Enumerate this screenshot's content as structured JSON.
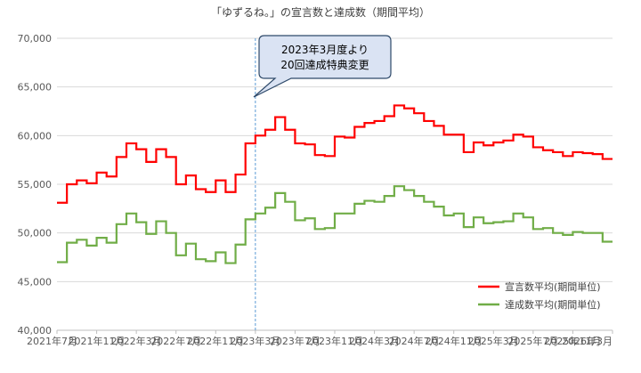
{
  "chart_data": {
    "type": "line",
    "title": "「ゆずるね。」の宣言数と達成数（期間平均）",
    "xlabel": "",
    "ylabel": "",
    "ylim": [
      40000,
      70000
    ],
    "yticks": [
      40000,
      45000,
      50000,
      55000,
      60000,
      65000,
      70000
    ],
    "ytick_labels": [
      "40,000",
      "45,000",
      "50,000",
      "55,000",
      "60,000",
      "65,000",
      "70,000"
    ],
    "xlim": [
      "2021-07",
      "2026-03"
    ],
    "xticks": [
      "2021-07",
      "2021-11",
      "2022-03",
      "2022-07",
      "2022-11",
      "2023-03",
      "2023-07",
      "2023-11",
      "2024-03",
      "2024-07",
      "2024-11",
      "2025-03",
      "2025-07",
      "2025-11",
      "2026-03"
    ],
    "xtick_labels": [
      "2021年7月",
      "2021年11月",
      "2022年3月",
      "2022年7月",
      "2022年11月",
      "2023年3月",
      "2023年7月",
      "2023年11月",
      "2024年3月",
      "2024年7月",
      "2024年11月",
      "2025年3月",
      "2025年7月",
      "2025年11月",
      "2026年3月"
    ],
    "grid": true,
    "legend": "bottom-right",
    "annotation": {
      "x": "2023-03",
      "text_lines": [
        "2023年3月度より",
        "20回達成特典変更"
      ]
    },
    "series": [
      {
        "name": "宣言数平均(期間単位)",
        "color": "#ff0000",
        "step": true,
        "points": [
          [
            "2021-07",
            53100
          ],
          [
            "2021-08",
            55000
          ],
          [
            "2021-09",
            55400
          ],
          [
            "2021-10",
            55100
          ],
          [
            "2021-11",
            56200
          ],
          [
            "2021-12",
            55800
          ],
          [
            "2022-01",
            57800
          ],
          [
            "2022-02",
            59200
          ],
          [
            "2022-03",
            58600
          ],
          [
            "2022-04",
            57300
          ],
          [
            "2022-05",
            58600
          ],
          [
            "2022-06",
            57800
          ],
          [
            "2022-07",
            55000
          ],
          [
            "2022-08",
            55900
          ],
          [
            "2022-09",
            54500
          ],
          [
            "2022-10",
            54200
          ],
          [
            "2022-11",
            55400
          ],
          [
            "2022-12",
            54200
          ],
          [
            "2023-01",
            56000
          ],
          [
            "2023-02",
            59200
          ],
          [
            "2023-03",
            60000
          ],
          [
            "2023-04",
            60600
          ],
          [
            "2023-05",
            61900
          ],
          [
            "2023-06",
            60600
          ],
          [
            "2023-07",
            59200
          ],
          [
            "2023-08",
            59100
          ],
          [
            "2023-09",
            58000
          ],
          [
            "2023-10",
            57900
          ],
          [
            "2023-11",
            59900
          ],
          [
            "2023-12",
            59800
          ],
          [
            "2024-01",
            60900
          ],
          [
            "2024-02",
            61300
          ],
          [
            "2024-03",
            61500
          ],
          [
            "2024-04",
            62000
          ],
          [
            "2024-05",
            63100
          ],
          [
            "2024-06",
            62800
          ],
          [
            "2024-07",
            62300
          ],
          [
            "2024-08",
            61500
          ],
          [
            "2024-09",
            61000
          ],
          [
            "2024-10",
            60100
          ],
          [
            "2024-11",
            60100
          ],
          [
            "2024-12",
            58300
          ],
          [
            "2025-01",
            59300
          ],
          [
            "2025-02",
            59000
          ],
          [
            "2025-03",
            59300
          ],
          [
            "2025-04",
            59500
          ],
          [
            "2025-05",
            60100
          ],
          [
            "2025-06",
            59900
          ],
          [
            "2025-07",
            58800
          ],
          [
            "2025-08",
            58500
          ],
          [
            "2025-09",
            58300
          ],
          [
            "2025-10",
            57900
          ],
          [
            "2025-11",
            58300
          ],
          [
            "2025-12",
            58200
          ],
          [
            "2026-01",
            58100
          ],
          [
            "2026-02",
            57600
          ],
          [
            "2026-03",
            57600
          ]
        ]
      },
      {
        "name": "達成数平均(期間単位)",
        "color": "#70ad47",
        "step": true,
        "points": [
          [
            "2021-07",
            47000
          ],
          [
            "2021-08",
            49000
          ],
          [
            "2021-09",
            49300
          ],
          [
            "2021-10",
            48700
          ],
          [
            "2021-11",
            49500
          ],
          [
            "2021-12",
            49000
          ],
          [
            "2022-01",
            50900
          ],
          [
            "2022-02",
            52000
          ],
          [
            "2022-03",
            51100
          ],
          [
            "2022-04",
            49900
          ],
          [
            "2022-05",
            51200
          ],
          [
            "2022-06",
            50000
          ],
          [
            "2022-07",
            47700
          ],
          [
            "2022-08",
            48900
          ],
          [
            "2022-09",
            47300
          ],
          [
            "2022-10",
            47100
          ],
          [
            "2022-11",
            48000
          ],
          [
            "2022-12",
            46900
          ],
          [
            "2023-01",
            48800
          ],
          [
            "2023-02",
            51400
          ],
          [
            "2023-03",
            52000
          ],
          [
            "2023-04",
            52600
          ],
          [
            "2023-05",
            54100
          ],
          [
            "2023-06",
            53200
          ],
          [
            "2023-07",
            51300
          ],
          [
            "2023-08",
            51500
          ],
          [
            "2023-09",
            50400
          ],
          [
            "2023-10",
            50500
          ],
          [
            "2023-11",
            52000
          ],
          [
            "2023-12",
            52000
          ],
          [
            "2024-01",
            53000
          ],
          [
            "2024-02",
            53300
          ],
          [
            "2024-03",
            53200
          ],
          [
            "2024-04",
            53800
          ],
          [
            "2024-05",
            54800
          ],
          [
            "2024-06",
            54400
          ],
          [
            "2024-07",
            53800
          ],
          [
            "2024-08",
            53200
          ],
          [
            "2024-09",
            52700
          ],
          [
            "2024-10",
            51800
          ],
          [
            "2024-11",
            52000
          ],
          [
            "2024-12",
            50600
          ],
          [
            "2025-01",
            51600
          ],
          [
            "2025-02",
            51000
          ],
          [
            "2025-03",
            51100
          ],
          [
            "2025-04",
            51200
          ],
          [
            "2025-05",
            52000
          ],
          [
            "2025-06",
            51600
          ],
          [
            "2025-07",
            50400
          ],
          [
            "2025-08",
            50500
          ],
          [
            "2025-09",
            50000
          ],
          [
            "2025-10",
            49800
          ],
          [
            "2025-11",
            50100
          ],
          [
            "2025-12",
            50000
          ],
          [
            "2026-01",
            50000
          ],
          [
            "2026-02",
            49100
          ],
          [
            "2026-03",
            49100
          ]
        ]
      }
    ]
  }
}
